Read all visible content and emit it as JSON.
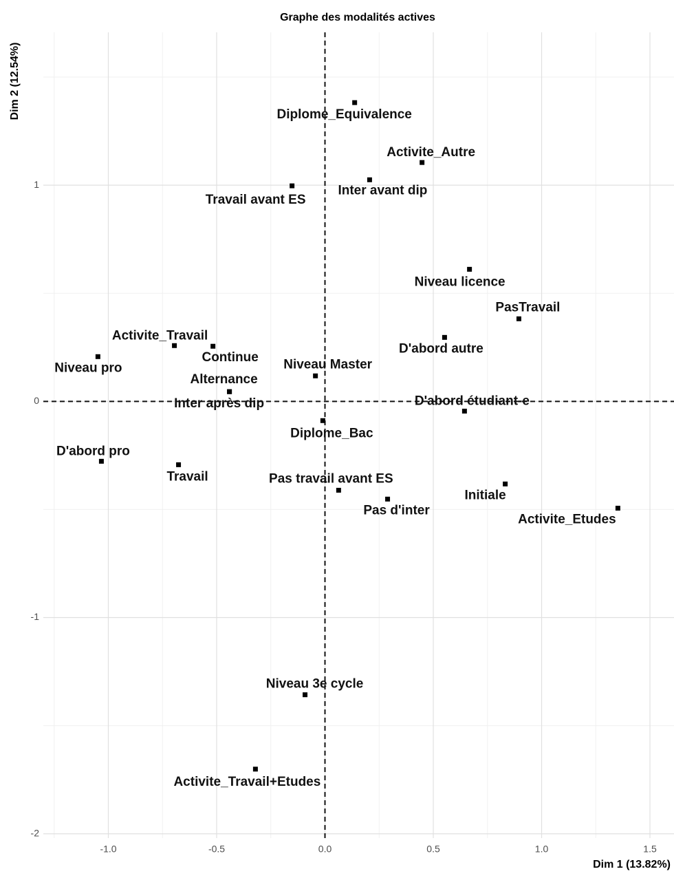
{
  "chart_data": {
    "type": "scatter",
    "title": "Graphe des modalités actives",
    "x_label": "Dim 1 (13.82%)",
    "y_label": "Dim 2 (12.54%)",
    "xlim": [
      -1.3,
      1.611
    ],
    "ylim": [
      -2.02,
      1.707
    ],
    "xticks": [
      {
        "value": -1.0,
        "label": "-1.0"
      },
      -0.5,
      {
        "value": 0.0,
        "label": "0.0"
      },
      0.5,
      {
        "value": 1.0,
        "label": "1.0"
      },
      1.5
    ],
    "yticks": [
      -2,
      -1,
      0,
      1
    ],
    "grid": true,
    "color": "#000000",
    "labels": [
      "Diplome_Equivalence",
      "Activite_Autre",
      "Inter avant dip",
      "Travail avant ES",
      "Niveau licence",
      "PasTravail",
      "D'abord autre",
      "Activite_Travail",
      "Continue",
      "Niveau pro",
      "Niveau Master",
      "Alternance",
      "Inter après dip",
      "D'abord étudiant-e",
      "Diplome_Bac",
      "D'abord pro",
      "Travail",
      "Pas travail avant ES",
      "Initiale",
      "Pas d'inter",
      "Activite_Etudes",
      "Niveau 3e cycle",
      "Activite_Travail+Etudes"
    ],
    "x": [
      0.137,
      0.448,
      0.206,
      -0.152,
      0.667,
      0.895,
      0.552,
      -0.695,
      -0.517,
      -1.048,
      -0.044,
      -0.441,
      -0.441,
      0.644,
      -0.01,
      -1.032,
      -0.676,
      0.063,
      0.832,
      0.289,
      1.352,
      -0.092,
      -0.321
    ],
    "values": [
      1.382,
      1.105,
      1.025,
      0.997,
      0.611,
      0.382,
      0.296,
      0.258,
      0.255,
      0.207,
      0.118,
      0.045,
      0.045,
      -0.045,
      -0.089,
      -0.277,
      -0.293,
      -0.411,
      -0.382,
      -0.452,
      -0.494,
      -1.357,
      -1.701
    ]
  }
}
